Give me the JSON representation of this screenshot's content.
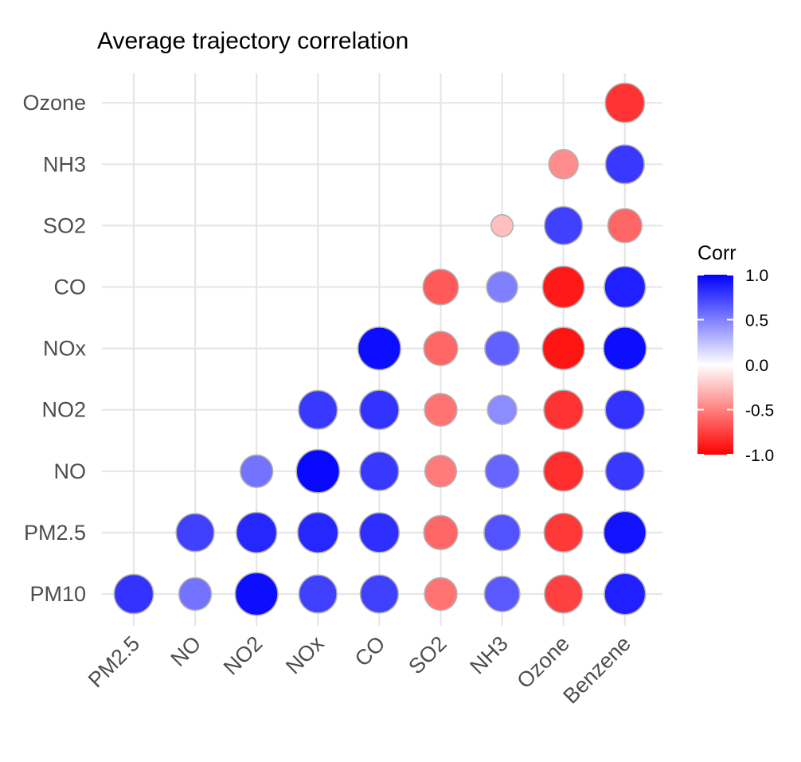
{
  "chart_data": {
    "type": "heatmap",
    "title": "Average trajectory correlation",
    "x_categories": [
      "PM2.5",
      "NO",
      "NO2",
      "NOx",
      "CO",
      "SO2",
      "NH3",
      "Ozone",
      "Benzene"
    ],
    "y_categories": [
      "PM10",
      "PM2.5",
      "NO",
      "NO2",
      "NOx",
      "CO",
      "SO2",
      "NH3",
      "Ozone"
    ],
    "size_encodes": "absolute correlation",
    "cells": [
      {
        "x": "PM2.5",
        "y": "PM10",
        "value": 0.8
      },
      {
        "x": "NO",
        "y": "PM10",
        "value": 0.55
      },
      {
        "x": "NO2",
        "y": "PM10",
        "value": 0.95
      },
      {
        "x": "NOx",
        "y": "PM10",
        "value": 0.75
      },
      {
        "x": "CO",
        "y": "PM10",
        "value": 0.75
      },
      {
        "x": "SO2",
        "y": "PM10",
        "value": -0.55
      },
      {
        "x": "NH3",
        "y": "PM10",
        "value": 0.65
      },
      {
        "x": "Ozone",
        "y": "PM10",
        "value": -0.75
      },
      {
        "x": "Benzene",
        "y": "PM10",
        "value": 0.88
      },
      {
        "x": "NO",
        "y": "PM2.5",
        "value": 0.75
      },
      {
        "x": "NO2",
        "y": "PM2.5",
        "value": 0.85
      },
      {
        "x": "NOx",
        "y": "PM2.5",
        "value": 0.85
      },
      {
        "x": "CO",
        "y": "PM2.5",
        "value": 0.82
      },
      {
        "x": "SO2",
        "y": "PM2.5",
        "value": -0.6
      },
      {
        "x": "NH3",
        "y": "PM2.5",
        "value": 0.68
      },
      {
        "x": "Ozone",
        "y": "PM2.5",
        "value": -0.78
      },
      {
        "x": "Benzene",
        "y": "PM2.5",
        "value": 0.93
      },
      {
        "x": "NO2",
        "y": "NO",
        "value": 0.55
      },
      {
        "x": "NOx",
        "y": "NO",
        "value": 0.97
      },
      {
        "x": "CO",
        "y": "NO",
        "value": 0.78
      },
      {
        "x": "SO2",
        "y": "NO",
        "value": -0.52
      },
      {
        "x": "NH3",
        "y": "NO",
        "value": 0.6
      },
      {
        "x": "Ozone",
        "y": "NO",
        "value": -0.82
      },
      {
        "x": "Benzene",
        "y": "NO",
        "value": 0.78
      },
      {
        "x": "NOx",
        "y": "NO2",
        "value": 0.78
      },
      {
        "x": "CO",
        "y": "NO2",
        "value": 0.8
      },
      {
        "x": "SO2",
        "y": "NO2",
        "value": -0.55
      },
      {
        "x": "NH3",
        "y": "NO2",
        "value": 0.45
      },
      {
        "x": "Ozone",
        "y": "NO2",
        "value": -0.8
      },
      {
        "x": "Benzene",
        "y": "NO2",
        "value": 0.8
      },
      {
        "x": "CO",
        "y": "NOx",
        "value": 0.95
      },
      {
        "x": "SO2",
        "y": "NOx",
        "value": -0.6
      },
      {
        "x": "NH3",
        "y": "NOx",
        "value": 0.62
      },
      {
        "x": "Ozone",
        "y": "NOx",
        "value": -0.92
      },
      {
        "x": "Benzene",
        "y": "NOx",
        "value": 0.95
      },
      {
        "x": "SO2",
        "y": "CO",
        "value": -0.65
      },
      {
        "x": "NH3",
        "y": "CO",
        "value": 0.5
      },
      {
        "x": "Ozone",
        "y": "CO",
        "value": -0.9
      },
      {
        "x": "Benzene",
        "y": "CO",
        "value": 0.88
      },
      {
        "x": "NH3",
        "y": "SO2",
        "value": -0.25
      },
      {
        "x": "Ozone",
        "y": "SO2",
        "value": 0.75
      },
      {
        "x": "Benzene",
        "y": "SO2",
        "value": -0.6
      },
      {
        "x": "Ozone",
        "y": "NH3",
        "value": -0.45
      },
      {
        "x": "Benzene",
        "y": "NH3",
        "value": 0.78
      },
      {
        "x": "Benzene",
        "y": "Ozone",
        "value": -0.8
      }
    ],
    "legend": {
      "title": "Corr",
      "placement": "right",
      "ticks": [
        "1.0",
        "0.5",
        "0.0",
        "-0.5",
        "-1.0"
      ],
      "tick_values": [
        1.0,
        0.5,
        0.0,
        -0.5,
        -1.0
      ],
      "range": [
        -1.0,
        1.0
      ],
      "colors": {
        "low": "#ff0000",
        "mid": "#ffffff",
        "high": "#0000ff"
      }
    },
    "grid": true,
    "xlabel": "",
    "ylabel": ""
  }
}
